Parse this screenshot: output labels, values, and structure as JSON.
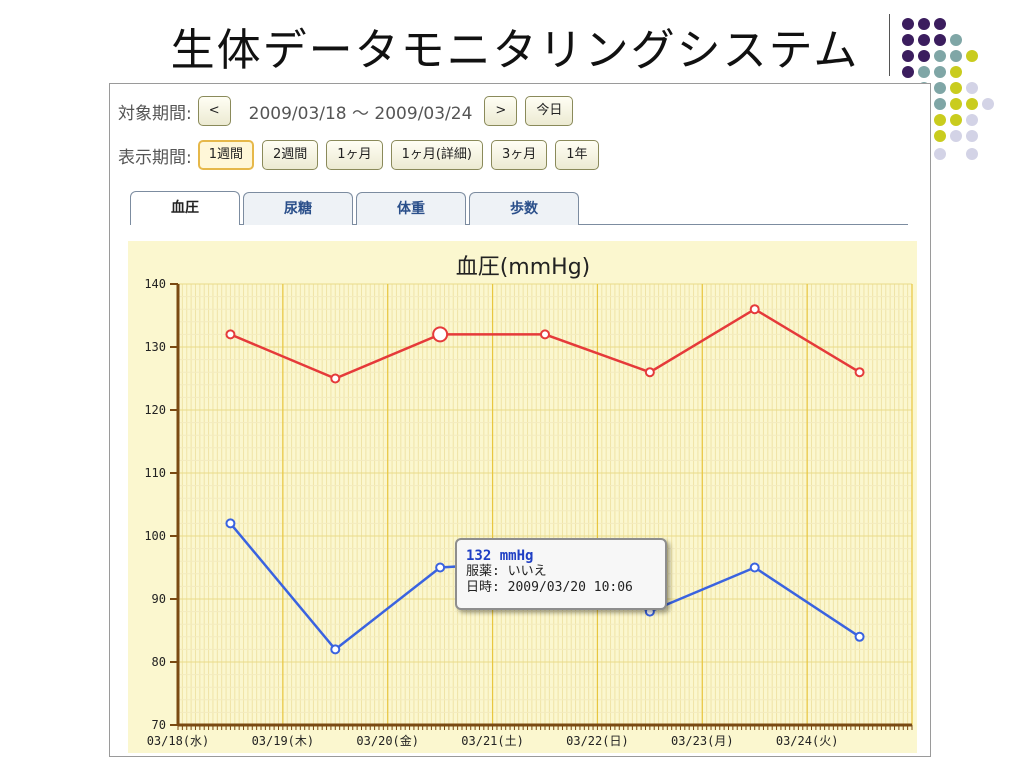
{
  "slide": {
    "title": "生体データモニタリングシステム"
  },
  "period": {
    "label": "対象期間:",
    "prev": "<",
    "range": "2009/03/18 ～ 2009/03/24",
    "next": ">",
    "today": "今日"
  },
  "display": {
    "label": "表示期間:",
    "buttons": [
      "1週間",
      "2週間",
      "1ヶ月",
      "1ヶ月(詳細)",
      "3ヶ月",
      "1年"
    ],
    "selected": "1週間"
  },
  "tabs": [
    "血圧",
    "尿糖",
    "体重",
    "歩数"
  ],
  "active_tab": "血圧",
  "tooltip": {
    "value": "132 mmHg",
    "medication": "服薬: いいえ",
    "datetime": "日時: 2009/03/20 10:06"
  },
  "colors": {
    "systolic": "#e53a3a",
    "diastolic": "#3a63e0",
    "plot_bg": "#fbf7cf",
    "axis": "#7a4a12",
    "day_grid": "#e8c640"
  },
  "chart_data": {
    "type": "line",
    "title": "血圧(mmHg)",
    "x": [
      "03/18(水)",
      "03/19(木)",
      "03/20(金)",
      "03/21(土)",
      "03/22(日)",
      "03/23(月)",
      "03/24(火)"
    ],
    "ylim": [
      70,
      140
    ],
    "yticks": [
      70,
      80,
      90,
      100,
      110,
      120,
      130,
      140
    ],
    "series": [
      {
        "values": [
          132,
          125,
          132,
          132,
          126,
          136,
          126
        ]
      },
      {
        "values": [
          102,
          82,
          95,
          96,
          88,
          95,
          84
        ]
      }
    ],
    "highlighted_point": {
      "series": 0,
      "index": 2
    },
    "grid": true
  }
}
